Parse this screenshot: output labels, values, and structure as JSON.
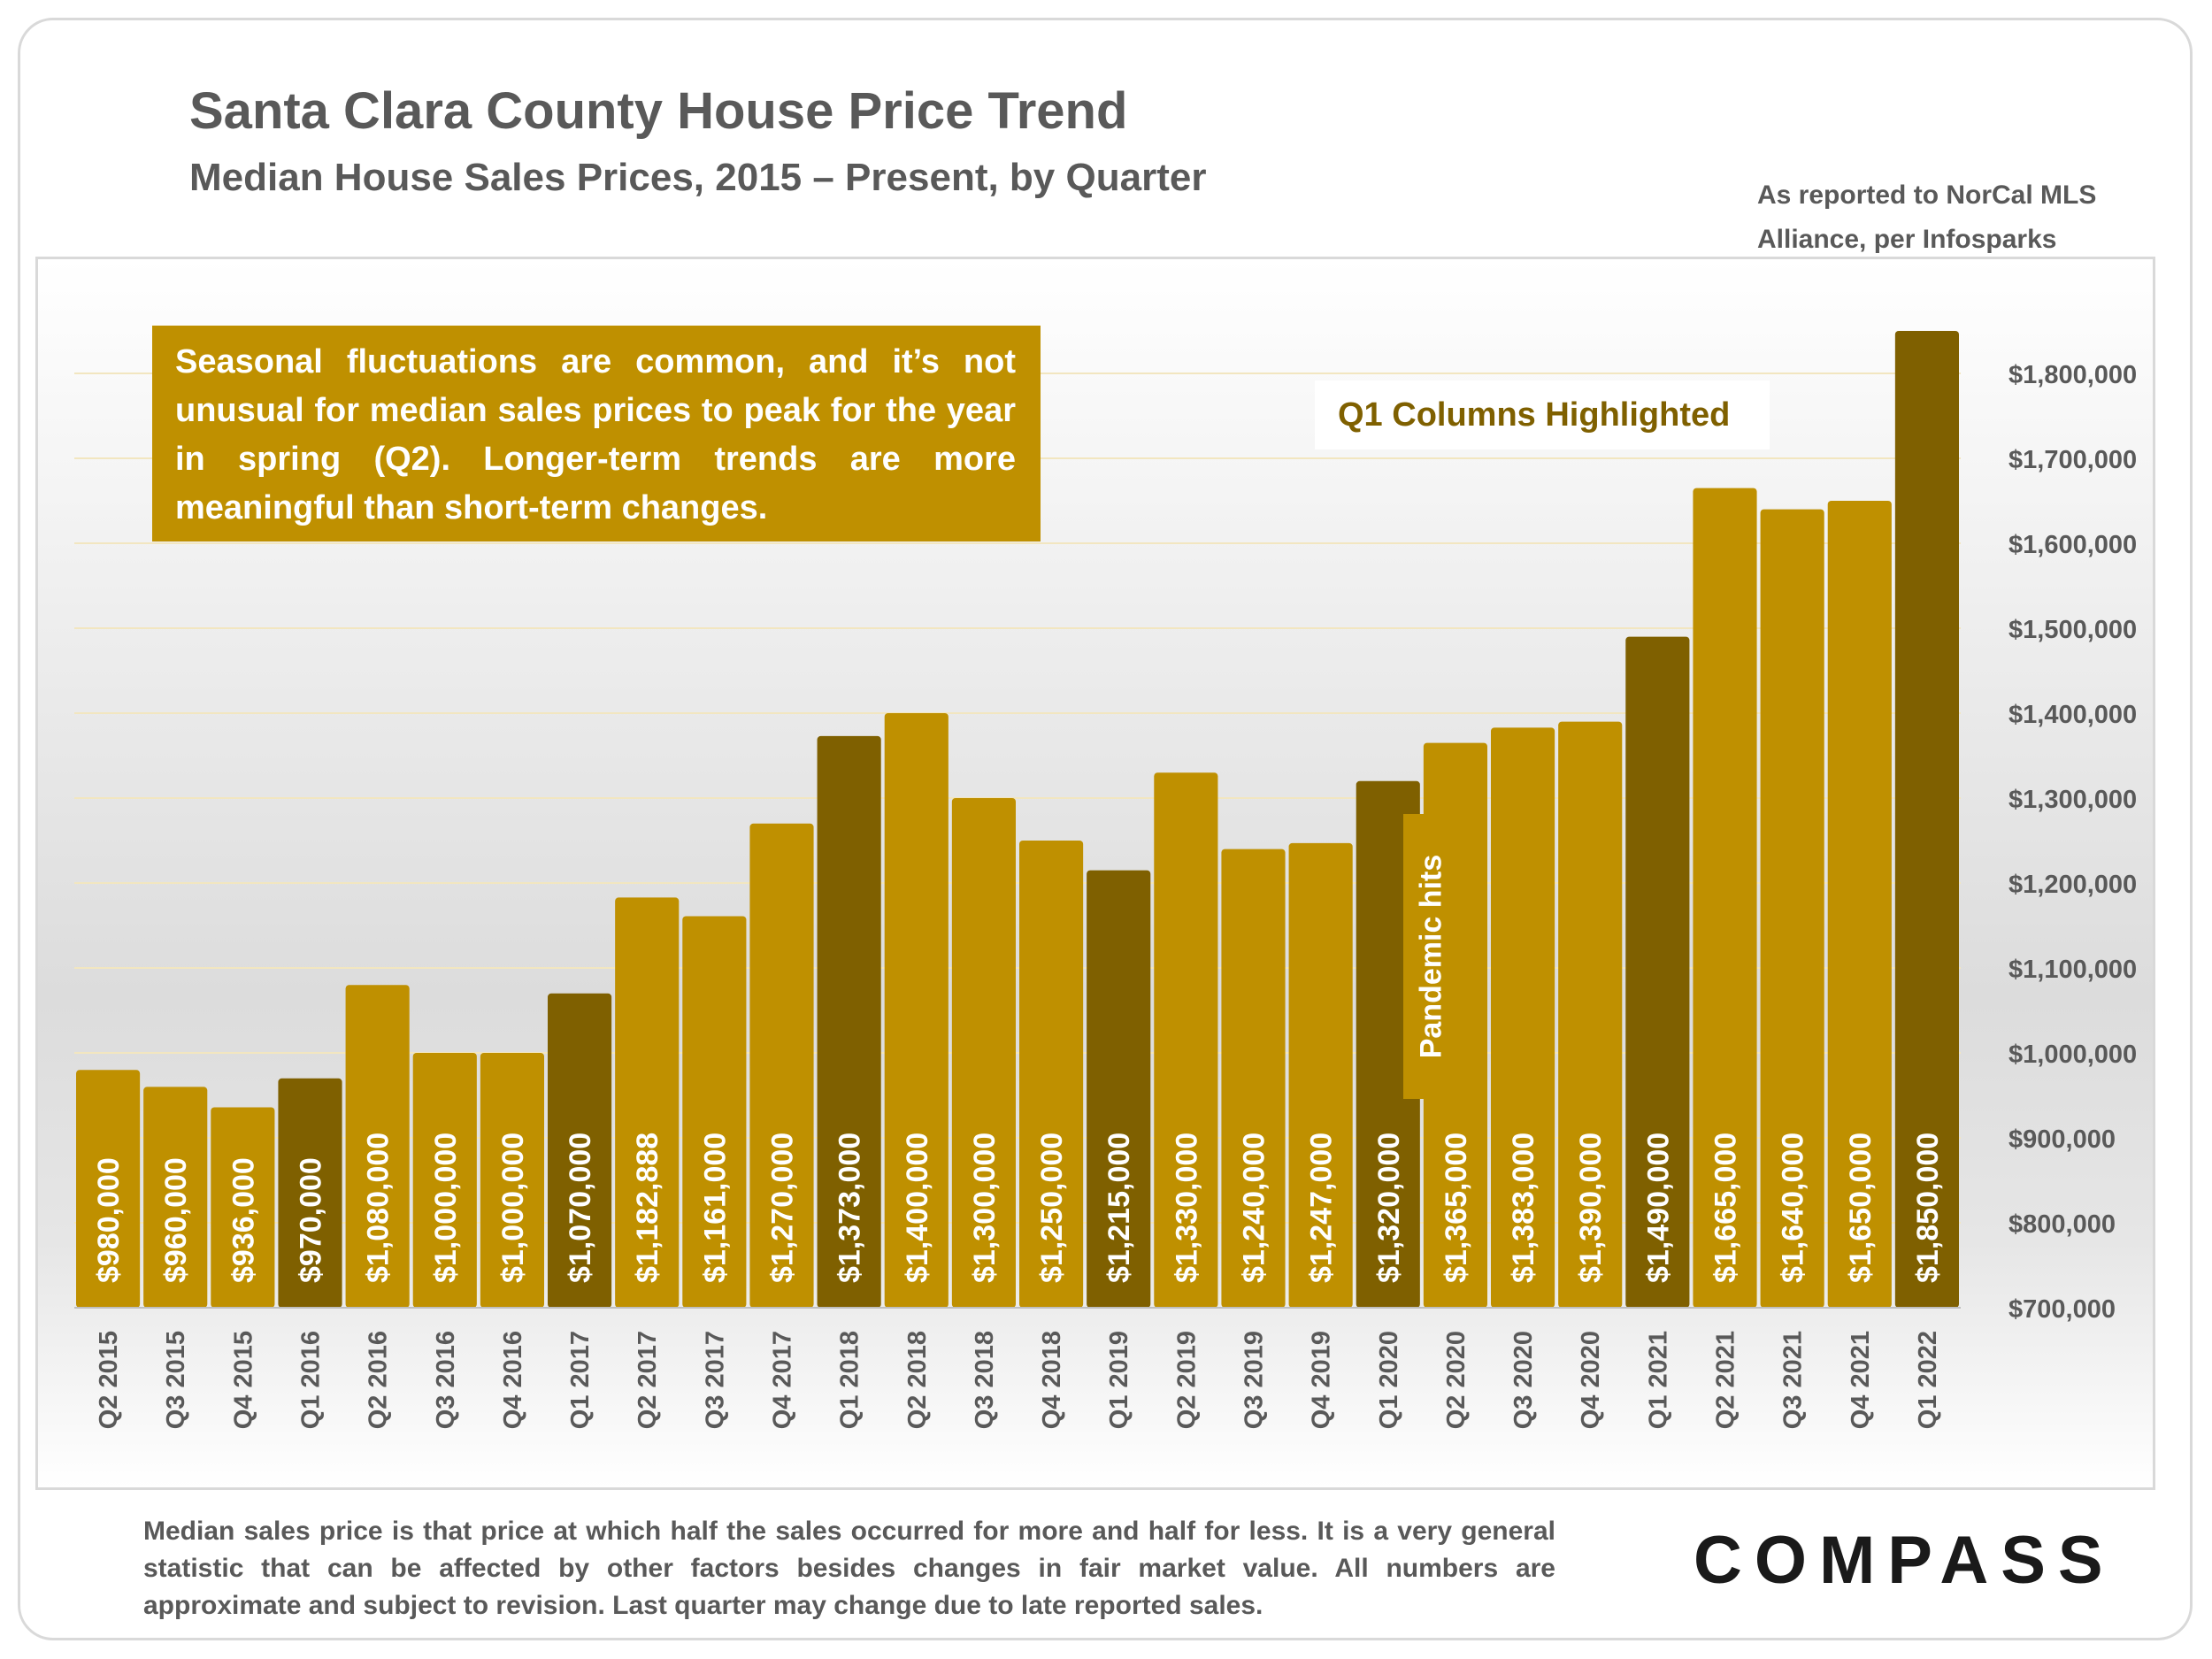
{
  "title": "Santa Clara County House Price Trend",
  "subtitle": "Median House Sales Prices, 2015 – Present, by Quarter",
  "source_note_line1": "As reported to NorCal MLS",
  "source_note_line2": "Alliance, per Infosparks",
  "callout_text": "Seasonal fluctuations are common, and it’s not unusual for median sales prices to peak for the year in spring (Q2). Longer-term trends are more meaningful than short-term changes.",
  "highlight_label": "Q1 Columns Highlighted",
  "pandemic_label": "Pandemic hits",
  "footnote": "Median sales price is that price at which half the sales occurred for more and half for less. It is a very general statistic that can be affected by other factors besides changes in fair market value. All numbers are approximate and subject to revision. Last quarter may change due to late reported sales.",
  "logo_text": "COMPASS",
  "colors": {
    "bar": "#bf9000",
    "bar_q1": "#7f6000",
    "bar_label": "#ffffff",
    "axis_text": "#595959"
  },
  "chart_data": {
    "type": "bar",
    "categories": [
      "Q2 2015",
      "Q3 2015",
      "Q4 2015",
      "Q1 2016",
      "Q2 2016",
      "Q3 2016",
      "Q4 2016",
      "Q1 2017",
      "Q2 2017",
      "Q3 2017",
      "Q4 2017",
      "Q1 2018",
      "Q2 2018",
      "Q3 2018",
      "Q4 2018",
      "Q1 2019",
      "Q2 2019",
      "Q3 2019",
      "Q4 2019",
      "Q1 2020",
      "Q2 2020",
      "Q3 2020",
      "Q4 2020",
      "Q1 2021",
      "Q2 2021",
      "Q3 2021",
      "Q4 2021",
      "Q1 2022"
    ],
    "values": [
      980000,
      960000,
      936000,
      970000,
      1080000,
      1000000,
      1000000,
      1070000,
      1182888,
      1161000,
      1270000,
      1373000,
      1400000,
      1300000,
      1250000,
      1215000,
      1330000,
      1240000,
      1247000,
      1320000,
      1365000,
      1383000,
      1390000,
      1490000,
      1665000,
      1640000,
      1650000,
      1850000
    ],
    "data_labels": [
      "$980,000",
      "$960,000",
      "$936,000",
      "$970,000",
      "$1,080,000",
      "$1,000,000",
      "$1,000,000",
      "$1,070,000",
      "$1,182,888",
      "$1,161,000",
      "$1,270,000",
      "$1,373,000",
      "$1,400,000",
      "$1,300,000",
      "$1,250,000",
      "$1,215,000",
      "$1,330,000",
      "$1,240,000",
      "$1,247,000",
      "$1,320,000",
      "$1,365,000",
      "$1,383,000",
      "$1,390,000",
      "$1,490,000",
      "$1,665,000",
      "$1,640,000",
      "$1,650,000",
      "$1,850,000"
    ],
    "highlighted": [
      "Q1 2016",
      "Q1 2017",
      "Q1 2018",
      "Q1 2019",
      "Q1 2020",
      "Q1 2021",
      "Q1 2022"
    ],
    "ylim": [
      700000,
      1800000
    ],
    "yticks": [
      700000,
      800000,
      900000,
      1000000,
      1100000,
      1200000,
      1300000,
      1400000,
      1500000,
      1600000,
      1700000,
      1800000
    ],
    "ytick_labels": [
      "$700,000",
      "$800,000",
      "$900,000",
      "$1,000,000",
      "$1,100,000",
      "$1,200,000",
      "$1,300,000",
      "$1,400,000",
      "$1,500,000",
      "$1,600,000",
      "$1,700,000",
      "$1,800,000"
    ],
    "y_axis_position": "right",
    "grid": true
  }
}
